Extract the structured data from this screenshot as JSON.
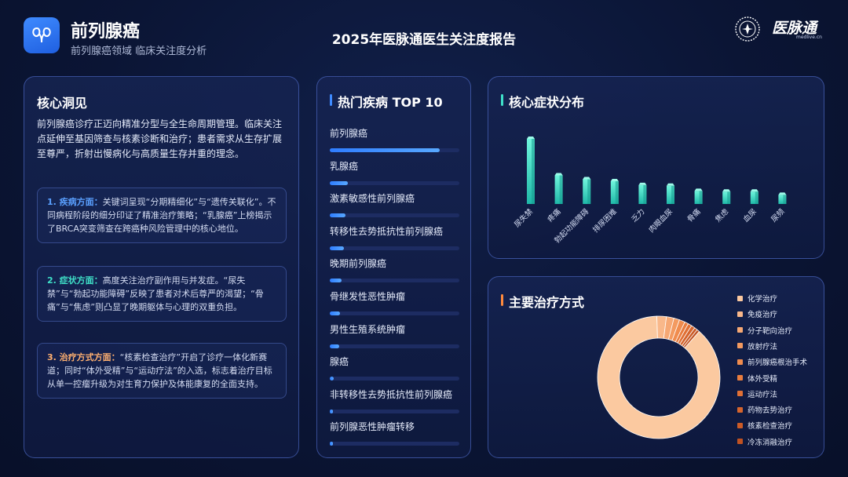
{
  "header": {
    "app_title": "前列腺癌",
    "app_subtitle": "前列腺癌领域 临床关注度分析",
    "report_title": "2025年医脉通医生关注度报告",
    "brand_name": "医脉通",
    "brand_url": "medlive.cn",
    "logo_icon": "kidney-icon"
  },
  "insight": {
    "title": "核心洞见",
    "intro": "前列腺癌诊疗正迈向精准分型与全生命周期管理。临床关注点延伸至基因筛查与核素诊断和治疗；患者需求从生存扩展至尊严，折射出慢病化与高质量生存并重的理念。",
    "cards": [
      {
        "head": "1. 疾病方面：",
        "color": "#5aa0ff",
        "text": "关键词呈现“分期精细化”与“遗传关联化”。不同病程阶段的细分印证了精准治疗策略；“乳腺癌”上榜揭示了BRCA突变筛查在跨癌种风险管理中的核心地位。"
      },
      {
        "head": "2. 症状方面：",
        "color": "#3fe0c8",
        "text": "高度关注治疗副作用与并发症。“尿失禁”与“勃起功能障碍”反映了患者对术后尊严的渴望；“骨痛”与“焦虑”则凸显了晚期躯体与心理的双重负担。"
      },
      {
        "head": "3. 治疗方式方面：",
        "color": "#ffb070",
        "text": "“核素检查治疗”开启了诊疗一体化新赛道；同时“体外受精”与“运动疗法”的入选，标志着治疗目标从单一控瘤升级为对生育力保护及体能康复的全面支持。"
      }
    ]
  },
  "top10": {
    "title": "热门疾病 TOP 10",
    "accent": "#3f8bff",
    "items": [
      {
        "label": "前列腺癌",
        "value": 0.85
      },
      {
        "label": "乳腺癌",
        "value": 0.14
      },
      {
        "label": "激素敏感性前列腺癌",
        "value": 0.12
      },
      {
        "label": "转移性去势抵抗性前列腺癌",
        "value": 0.11
      },
      {
        "label": "晚期前列腺癌",
        "value": 0.09
      },
      {
        "label": "骨继发性恶性肿瘤",
        "value": 0.08
      },
      {
        "label": "男性生殖系统肿瘤",
        "value": 0.07
      },
      {
        "label": "腺癌",
        "value": 0.03
      },
      {
        "label": "非转移性去势抵抗性前列腺癌",
        "value": 0.025
      },
      {
        "label": "前列腺恶性肿瘤转移",
        "value": 0.02
      }
    ]
  },
  "symptoms": {
    "title": "核心症状分布",
    "accent": "#3fe0c8"
  },
  "treatment": {
    "title": "主要治疗方式",
    "accent": "#ff8a3d"
  },
  "chart_data": [
    {
      "type": "bar",
      "title": "核心症状分布",
      "categories": [
        "尿失禁",
        "疼痛",
        "勃起功能障碍",
        "排尿困难",
        "乏力",
        "肉眼血尿",
        "骨痛",
        "焦虑",
        "血尿",
        "尿频"
      ],
      "values": [
        100,
        44,
        38,
        35,
        29,
        28,
        20,
        19,
        19,
        14
      ],
      "color": "#3fe0c8"
    },
    {
      "type": "pie",
      "title": "主要治疗方式",
      "categories": [
        "化学治疗",
        "免疫治疗",
        "分子靶向治疗",
        "放射疗法",
        "前列腺癌根治手术",
        "体外受精",
        "运动疗法",
        "药物去势治疗",
        "核素检查治疗",
        "冷冻消融治疗"
      ],
      "values": [
        88,
        2.5,
        2,
        1.5,
        1.5,
        1,
        1,
        1,
        0.8,
        0.7
      ],
      "colors": [
        "#fbc9a0",
        "#f9b88a",
        "#f6a874",
        "#f39a60",
        "#f08c4e",
        "#e97d3f",
        "#e07035",
        "#d6652d",
        "#cb5b27",
        "#c05222"
      ]
    }
  ]
}
